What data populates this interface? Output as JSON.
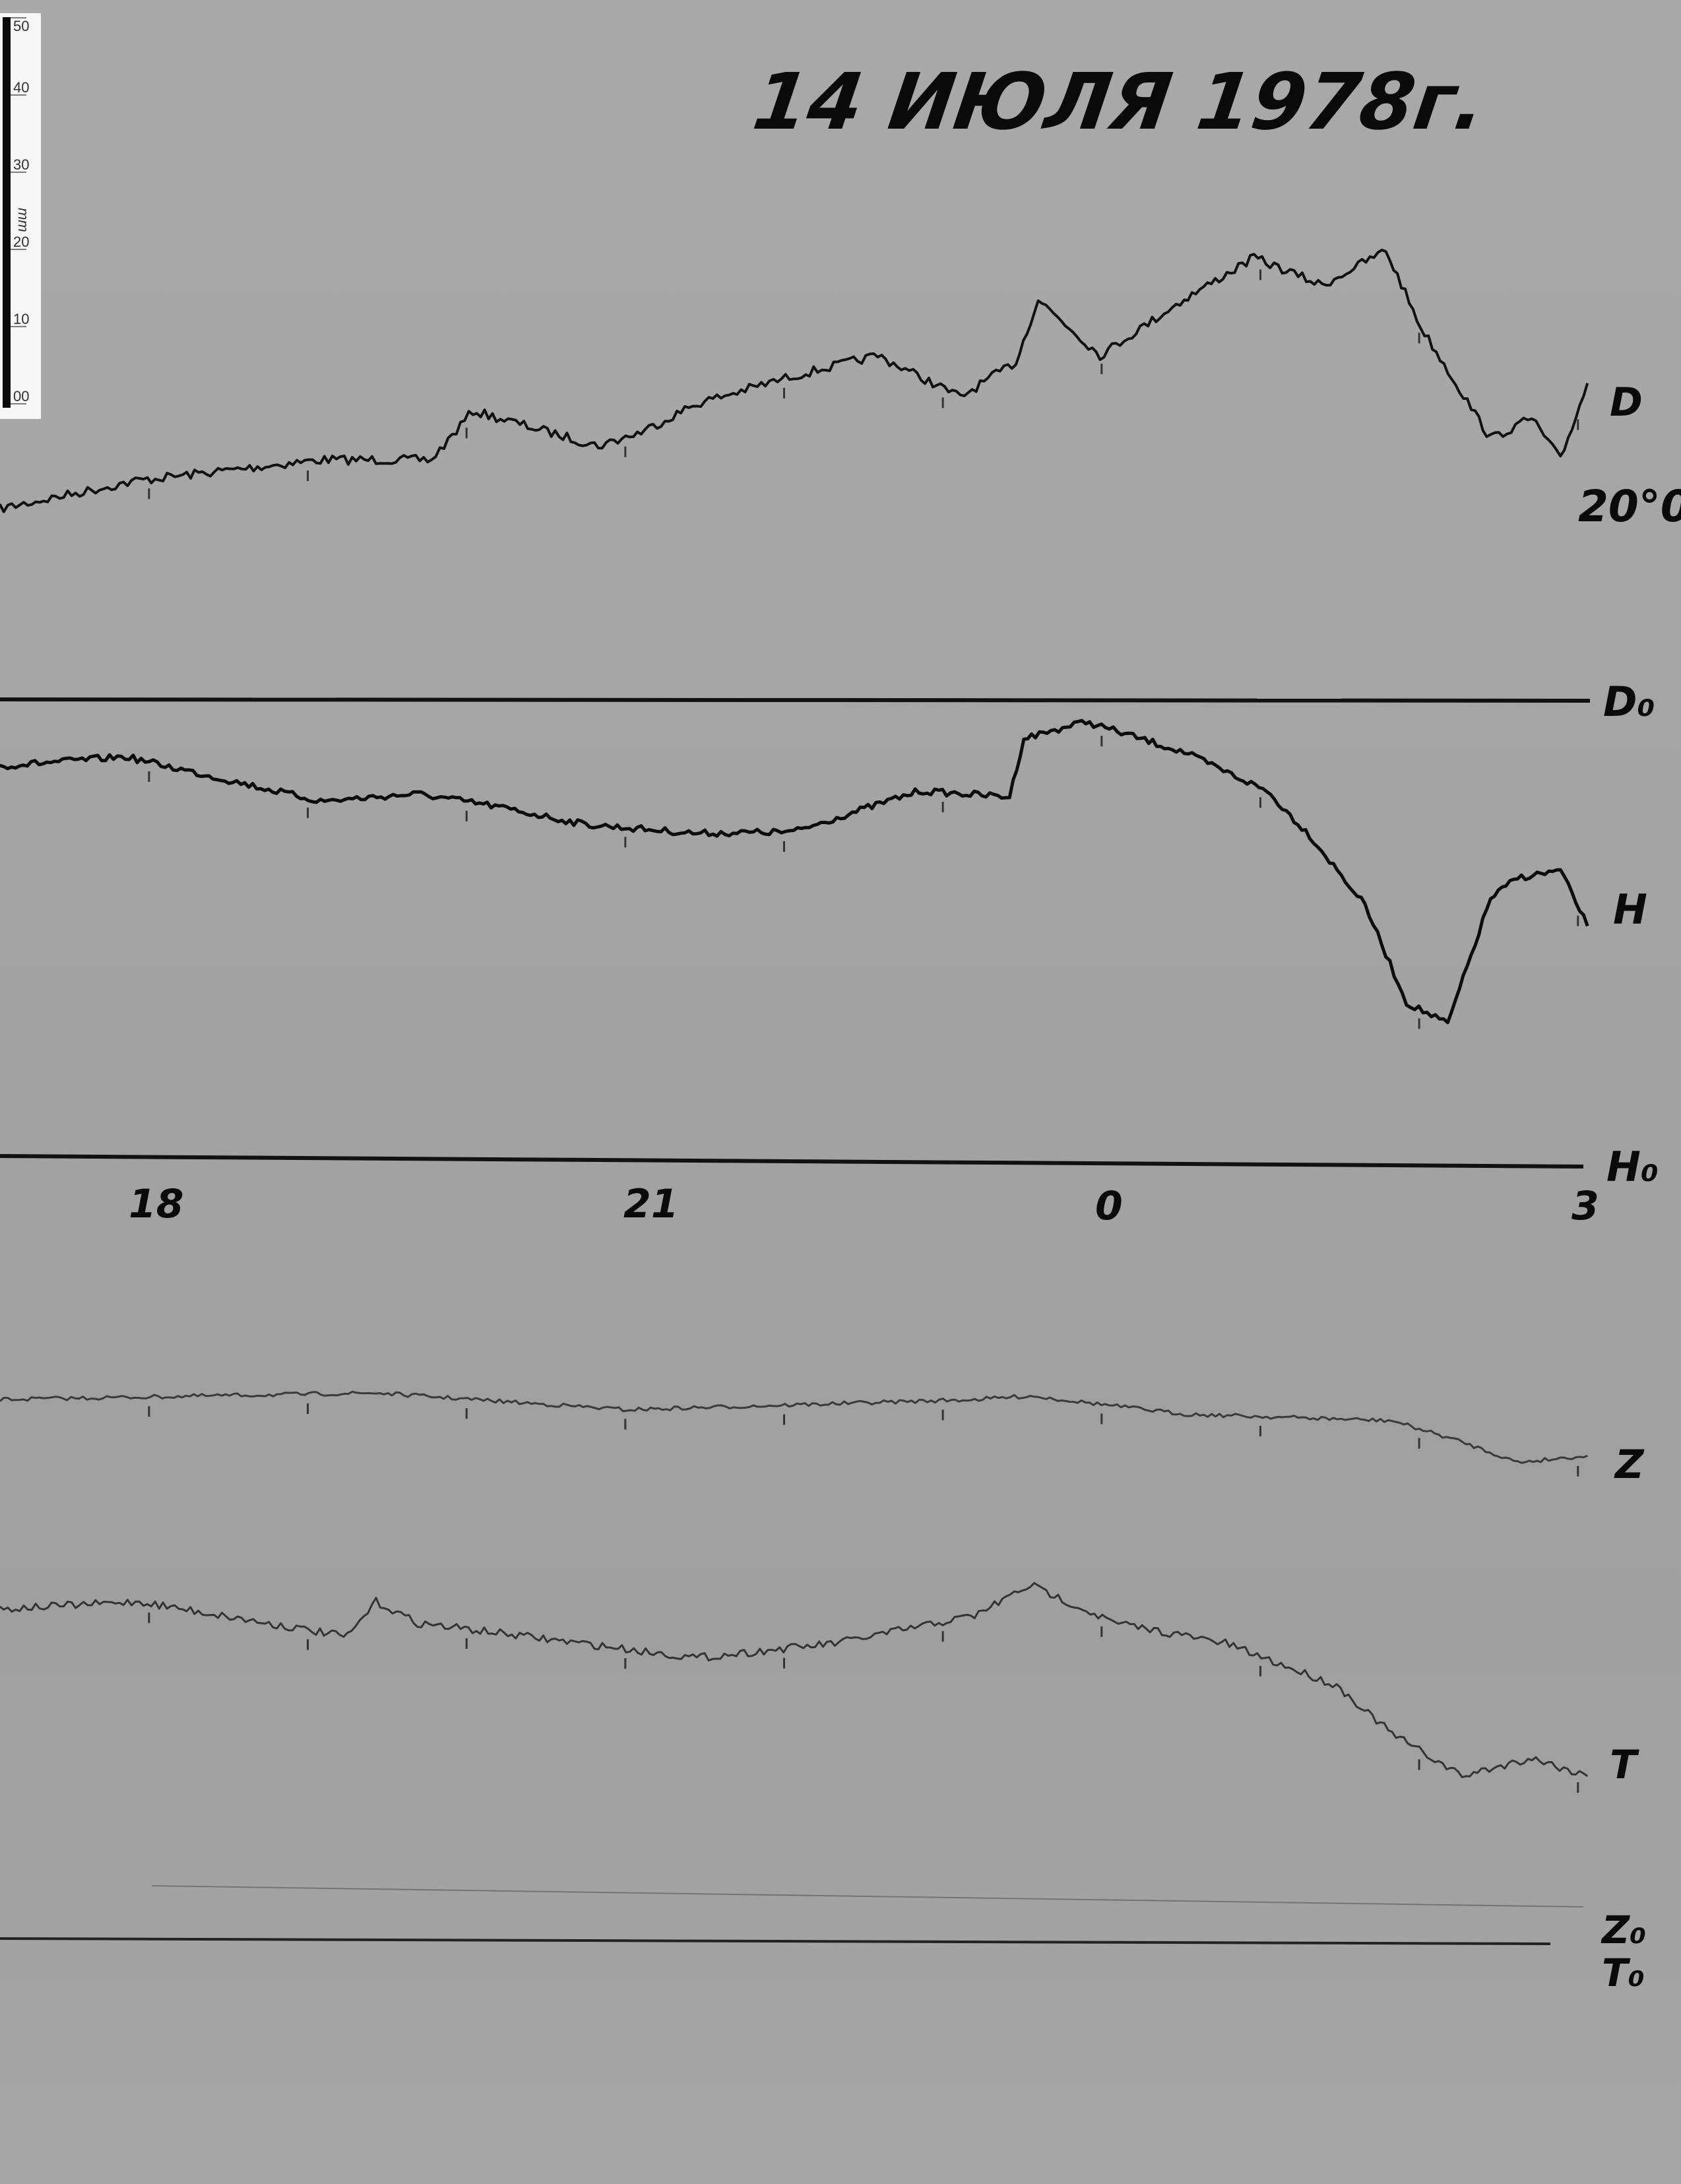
{
  "title": "14 ИЮЛЯ 1978г.",
  "ruler": {
    "unit": "mm",
    "ticks": [
      "00",
      "10",
      "20",
      "30",
      "40",
      "50"
    ]
  },
  "colors": {
    "paper": "#a6a6a6",
    "trace": "#111111",
    "ruler_bg": "#ffffff"
  },
  "chart_data": {
    "type": "line",
    "title": "14 ИЮЛЯ 1978г.",
    "xlabel": "",
    "ylabel": "",
    "x_unit": "hour (UT)",
    "x_ticks": [
      "18",
      "21",
      "0",
      "3"
    ],
    "y_unit": "mm above baseline",
    "grid": false,
    "scale_note": "20°0",
    "baselines": [
      "D₀",
      "H₀",
      "Z₀",
      "T₀"
    ],
    "series": [
      {
        "name": "D",
        "baseline": "D₀",
        "x": [
          17.06,
          17.94,
          19.08,
          19.78,
          20.04,
          20.83,
          21.1,
          21.45,
          22.06,
          22.59,
          23.11,
          23.46,
          23.6,
          23.99,
          0.52,
          0.96,
          1.39,
          1.79,
          2.01,
          2.45,
          2.71,
          2.89,
          3.06
        ],
        "y": [
          26.1,
          30.0,
          32.8,
          32.8,
          39.5,
          34.7,
          36.6,
          40.5,
          44.3,
          47.1,
          41.4,
          46.2,
          54.8,
          47.1,
          54.8,
          60.5,
          56.7,
          61.5,
          51.0,
          35.7,
          38.5,
          32.8,
          43.3
        ]
      },
      {
        "name": "H",
        "baseline": "H₀",
        "x": [
          17.06,
          17.85,
          19.08,
          19.69,
          20.13,
          20.75,
          21.45,
          22.06,
          22.85,
          23.42,
          23.51,
          23.9,
          0.52,
          1.04,
          1.31,
          1.66,
          1.92,
          2.18,
          2.45,
          2.62,
          2.89,
          3.06
        ],
        "y": [
          54.0,
          55.3,
          49.2,
          50.2,
          48.7,
          46.0,
          44.8,
          45.0,
          50.6,
          49.8,
          57.8,
          60.1,
          55.9,
          50.6,
          44.5,
          34.9,
          21.6,
          18.7,
          35.9,
          38.7,
          39.7,
          32.1
        ]
      },
      {
        "name": "Z",
        "baseline": "Z₀",
        "x": [
          17.06,
          19.43,
          21.01,
          23.2,
          23.55,
          0.52,
          1.83,
          2.27,
          2.62,
          3.06
        ],
        "y": [
          73.9,
          74.8,
          72.5,
          73.9,
          74.4,
          71.9,
          71.0,
          68.1,
          65.3,
          66.2
        ]
      },
      {
        "name": "T",
        "baseline": "T₀",
        "x": [
          17.06,
          17.94,
          19.25,
          19.43,
          19.69,
          21.45,
          22.32,
          23.2,
          23.55,
          0.08,
          0.78,
          1.48,
          1.83,
          2.27,
          2.71,
          3.06
        ],
        "y": [
          45.2,
          46.2,
          41.4,
          46.2,
          43.3,
          38.5,
          40.5,
          44.3,
          48.5,
          43.3,
          40.5,
          34.7,
          28.1,
          22.3,
          24.8,
          22.3
        ]
      }
    ]
  }
}
